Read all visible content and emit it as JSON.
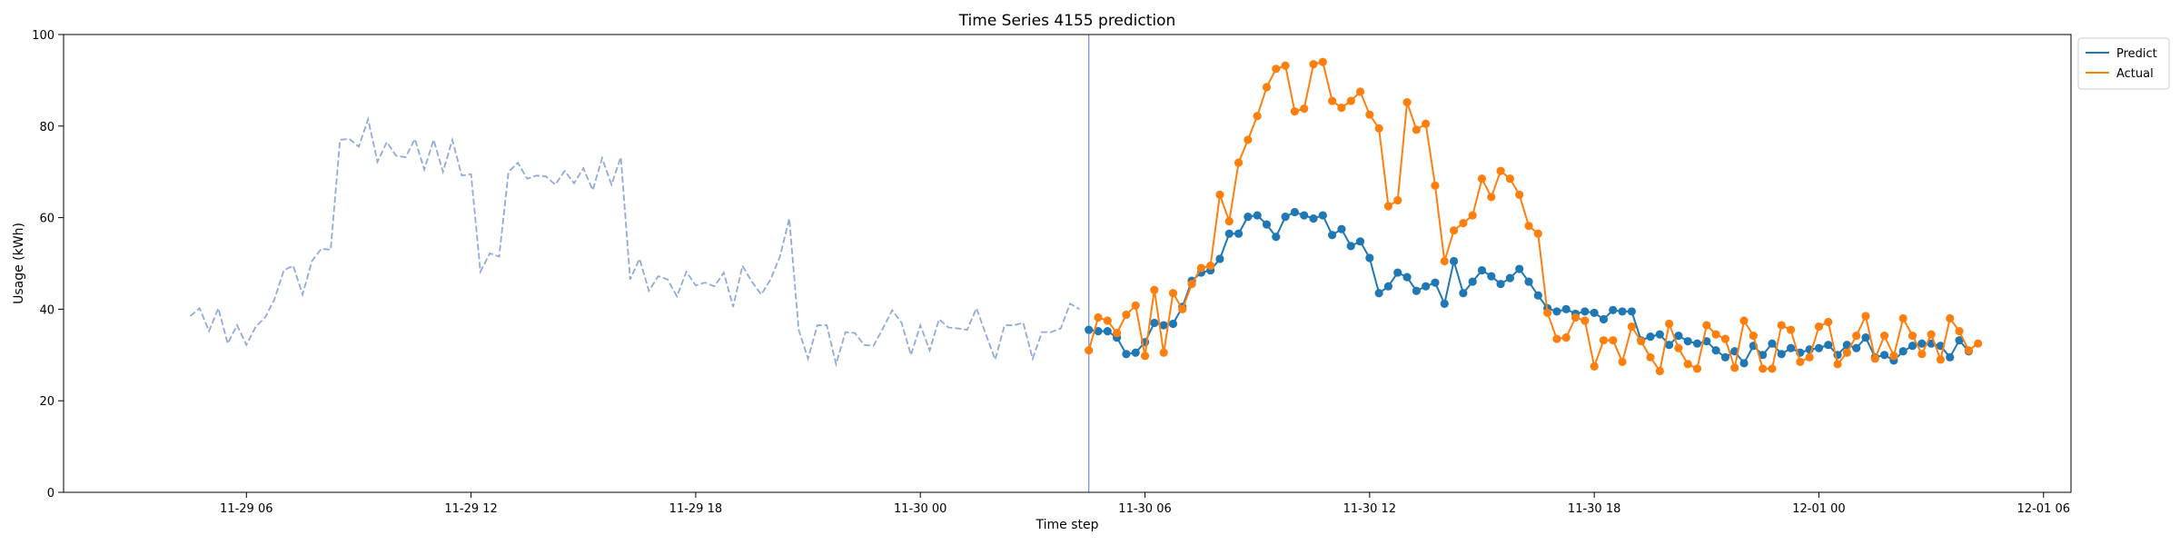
{
  "chart_data": {
    "type": "line",
    "title": "Time Series 4155 prediction",
    "xlabel": "Time step",
    "ylabel": "Usage (kWh)",
    "ylim": [
      0,
      100
    ],
    "xlim": [
      "2023-11-29 01:07",
      "2023-12-01 06:44"
    ],
    "grid": false,
    "legend_position": "top-right",
    "x_ticks": [
      {
        "x": "2023-11-29 06:00",
        "label": "11-29 06"
      },
      {
        "x": "2023-11-29 12:00",
        "label": "11-29 12"
      },
      {
        "x": "2023-11-29 18:00",
        "label": "11-29 18"
      },
      {
        "x": "2023-11-30 00:00",
        "label": "11-30 00"
      },
      {
        "x": "2023-11-30 06:00",
        "label": "11-30 06"
      },
      {
        "x": "2023-11-30 12:00",
        "label": "11-30 12"
      },
      {
        "x": "2023-11-30 18:00",
        "label": "11-30 18"
      },
      {
        "x": "2023-12-01 00:00",
        "label": "12-01 00"
      },
      {
        "x": "2023-12-01 06:00",
        "label": "12-01 06"
      }
    ],
    "y_ticks": [
      {
        "y": 0,
        "label": "0"
      },
      {
        "y": 20,
        "label": "20"
      },
      {
        "y": 40,
        "label": "40"
      },
      {
        "y": 60,
        "label": "60"
      },
      {
        "y": 80,
        "label": "80"
      },
      {
        "y": 100,
        "label": "100"
      }
    ],
    "vertical_line_x": "2023-11-30 04:30",
    "series": [
      {
        "name": "",
        "color": "#8faadc",
        "style": "dashed",
        "markers": false,
        "start": "2023-11-29 04:30",
        "interval_minutes": 15,
        "values": [
          38.5,
          40.2,
          35.2,
          40.2,
          32.5,
          36.5,
          32.2,
          36.2,
          38.2,
          42.2,
          48.5,
          49.5,
          43.2,
          50.5,
          53.2,
          53,
          77,
          77.2,
          75.5,
          81.5,
          72.2,
          76.5,
          73.5,
          73.2,
          77.2,
          70.5,
          77,
          70,
          77,
          69.2,
          69.5,
          48.2,
          52.2,
          51.5,
          70,
          72,
          68.5,
          69.2,
          69,
          67.2,
          70.2,
          67.5,
          70.8,
          66,
          73,
          67.2,
          73.2,
          46.5,
          51,
          44,
          47.2,
          46.5,
          42.8,
          48.2,
          45.2,
          45.8,
          45,
          48,
          40.5,
          49.5,
          46,
          43.2,
          46.5,
          51.5,
          59.8,
          35.5,
          29.2,
          36.5,
          36.5,
          28,
          35,
          34.8,
          32.2,
          32,
          35.8,
          39.8,
          37,
          30,
          36.5,
          31,
          37.8,
          36,
          35.8,
          35.5,
          40.2,
          34.5,
          29,
          36.5,
          36.5,
          37,
          29.2,
          35,
          35,
          35.8,
          41.2,
          40
        ]
      },
      {
        "name": "Predict",
        "color": "#1f77b4",
        "style": "solid",
        "markers": true,
        "start": "2023-11-30 04:30",
        "interval_minutes": 15,
        "values": [
          35.5,
          35.2,
          35.2,
          33.8,
          30.2,
          30.5,
          32.8,
          37,
          36.5,
          36.8,
          40.5,
          46.2,
          48,
          48.5,
          51,
          56.5,
          56.5,
          60.2,
          60.5,
          58.5,
          55.8,
          60.2,
          61.2,
          60.5,
          59.8,
          60.5,
          56.2,
          57.5,
          53.8,
          54.8,
          51.2,
          43.5,
          45,
          48,
          47,
          44,
          45,
          45.8,
          41.2,
          50.5,
          43.5,
          46,
          48.5,
          47.2,
          45.5,
          46.8,
          48.8,
          46,
          43,
          40.2,
          39.5,
          40,
          39,
          39.5,
          39.2,
          37.8,
          39.8,
          39.5,
          39.5,
          33.2,
          34,
          34.5,
          32.2,
          34.2,
          33,
          32.5,
          33,
          31,
          29.5,
          30.8,
          28.2,
          32,
          30,
          32.5,
          30.2,
          31.5,
          30.5,
          31.2,
          31.5,
          32.2,
          30,
          32.2,
          31.5,
          33.8,
          29.5,
          30,
          28.8,
          30.8,
          32,
          32.5,
          32.5,
          32,
          29.5,
          33.2,
          30.8
        ]
      },
      {
        "name": "Actual",
        "color": "#ff7f0e",
        "style": "solid",
        "markers": true,
        "start": "2023-11-30 04:30",
        "interval_minutes": 15,
        "values": [
          31,
          38.2,
          37.5,
          34.8,
          38.8,
          40.8,
          29.8,
          44.2,
          30.5,
          43.5,
          40,
          45.5,
          49,
          49.5,
          65,
          59.2,
          72,
          77,
          82.2,
          88.5,
          92.5,
          93.2,
          83.2,
          83.8,
          93.5,
          94,
          85.5,
          84,
          85.5,
          87.5,
          82.5,
          79.5,
          62.5,
          63.8,
          85.2,
          79.2,
          80.5,
          67,
          50.5,
          57.2,
          58.8,
          60.5,
          68.5,
          64.5,
          70.2,
          68.5,
          65,
          58.2,
          56.5,
          39.2,
          33.5,
          33.8,
          38.2,
          37.5,
          27.5,
          33.2,
          33.2,
          28.5,
          36.2,
          33,
          29.5,
          26.5,
          36.8,
          31.5,
          28,
          27,
          36.5,
          34.5,
          33.5,
          27.2,
          37.5,
          34.2,
          27,
          27,
          36.5,
          35.5,
          28.5,
          29.5,
          36.2,
          37.2,
          28,
          30.5,
          34.2,
          38.5,
          29.2,
          34.2,
          29.8,
          38,
          34.2,
          30.2,
          34.5,
          29,
          38,
          35.2,
          31,
          32.5
        ]
      }
    ]
  }
}
